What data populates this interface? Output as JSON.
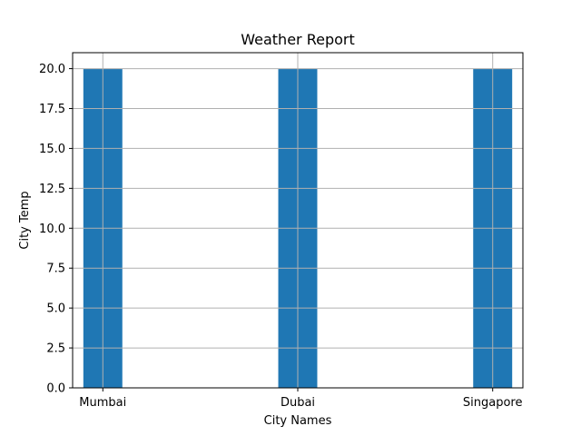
{
  "chart_data": {
    "type": "bar",
    "title": "Weather Report",
    "xlabel": "City Names",
    "ylabel": "City Temp",
    "categories": [
      "Mumbai",
      "Dubai",
      "Singapore"
    ],
    "values": [
      20,
      20,
      20
    ],
    "ylim": [
      0,
      21
    ],
    "yticks": [
      "0.0",
      "2.5",
      "5.0",
      "7.5",
      "10.0",
      "12.5",
      "15.0",
      "17.5",
      "20.0"
    ],
    "grid": true,
    "bar_color": "#1f77b4",
    "grid_color": "#b0b0b0"
  }
}
